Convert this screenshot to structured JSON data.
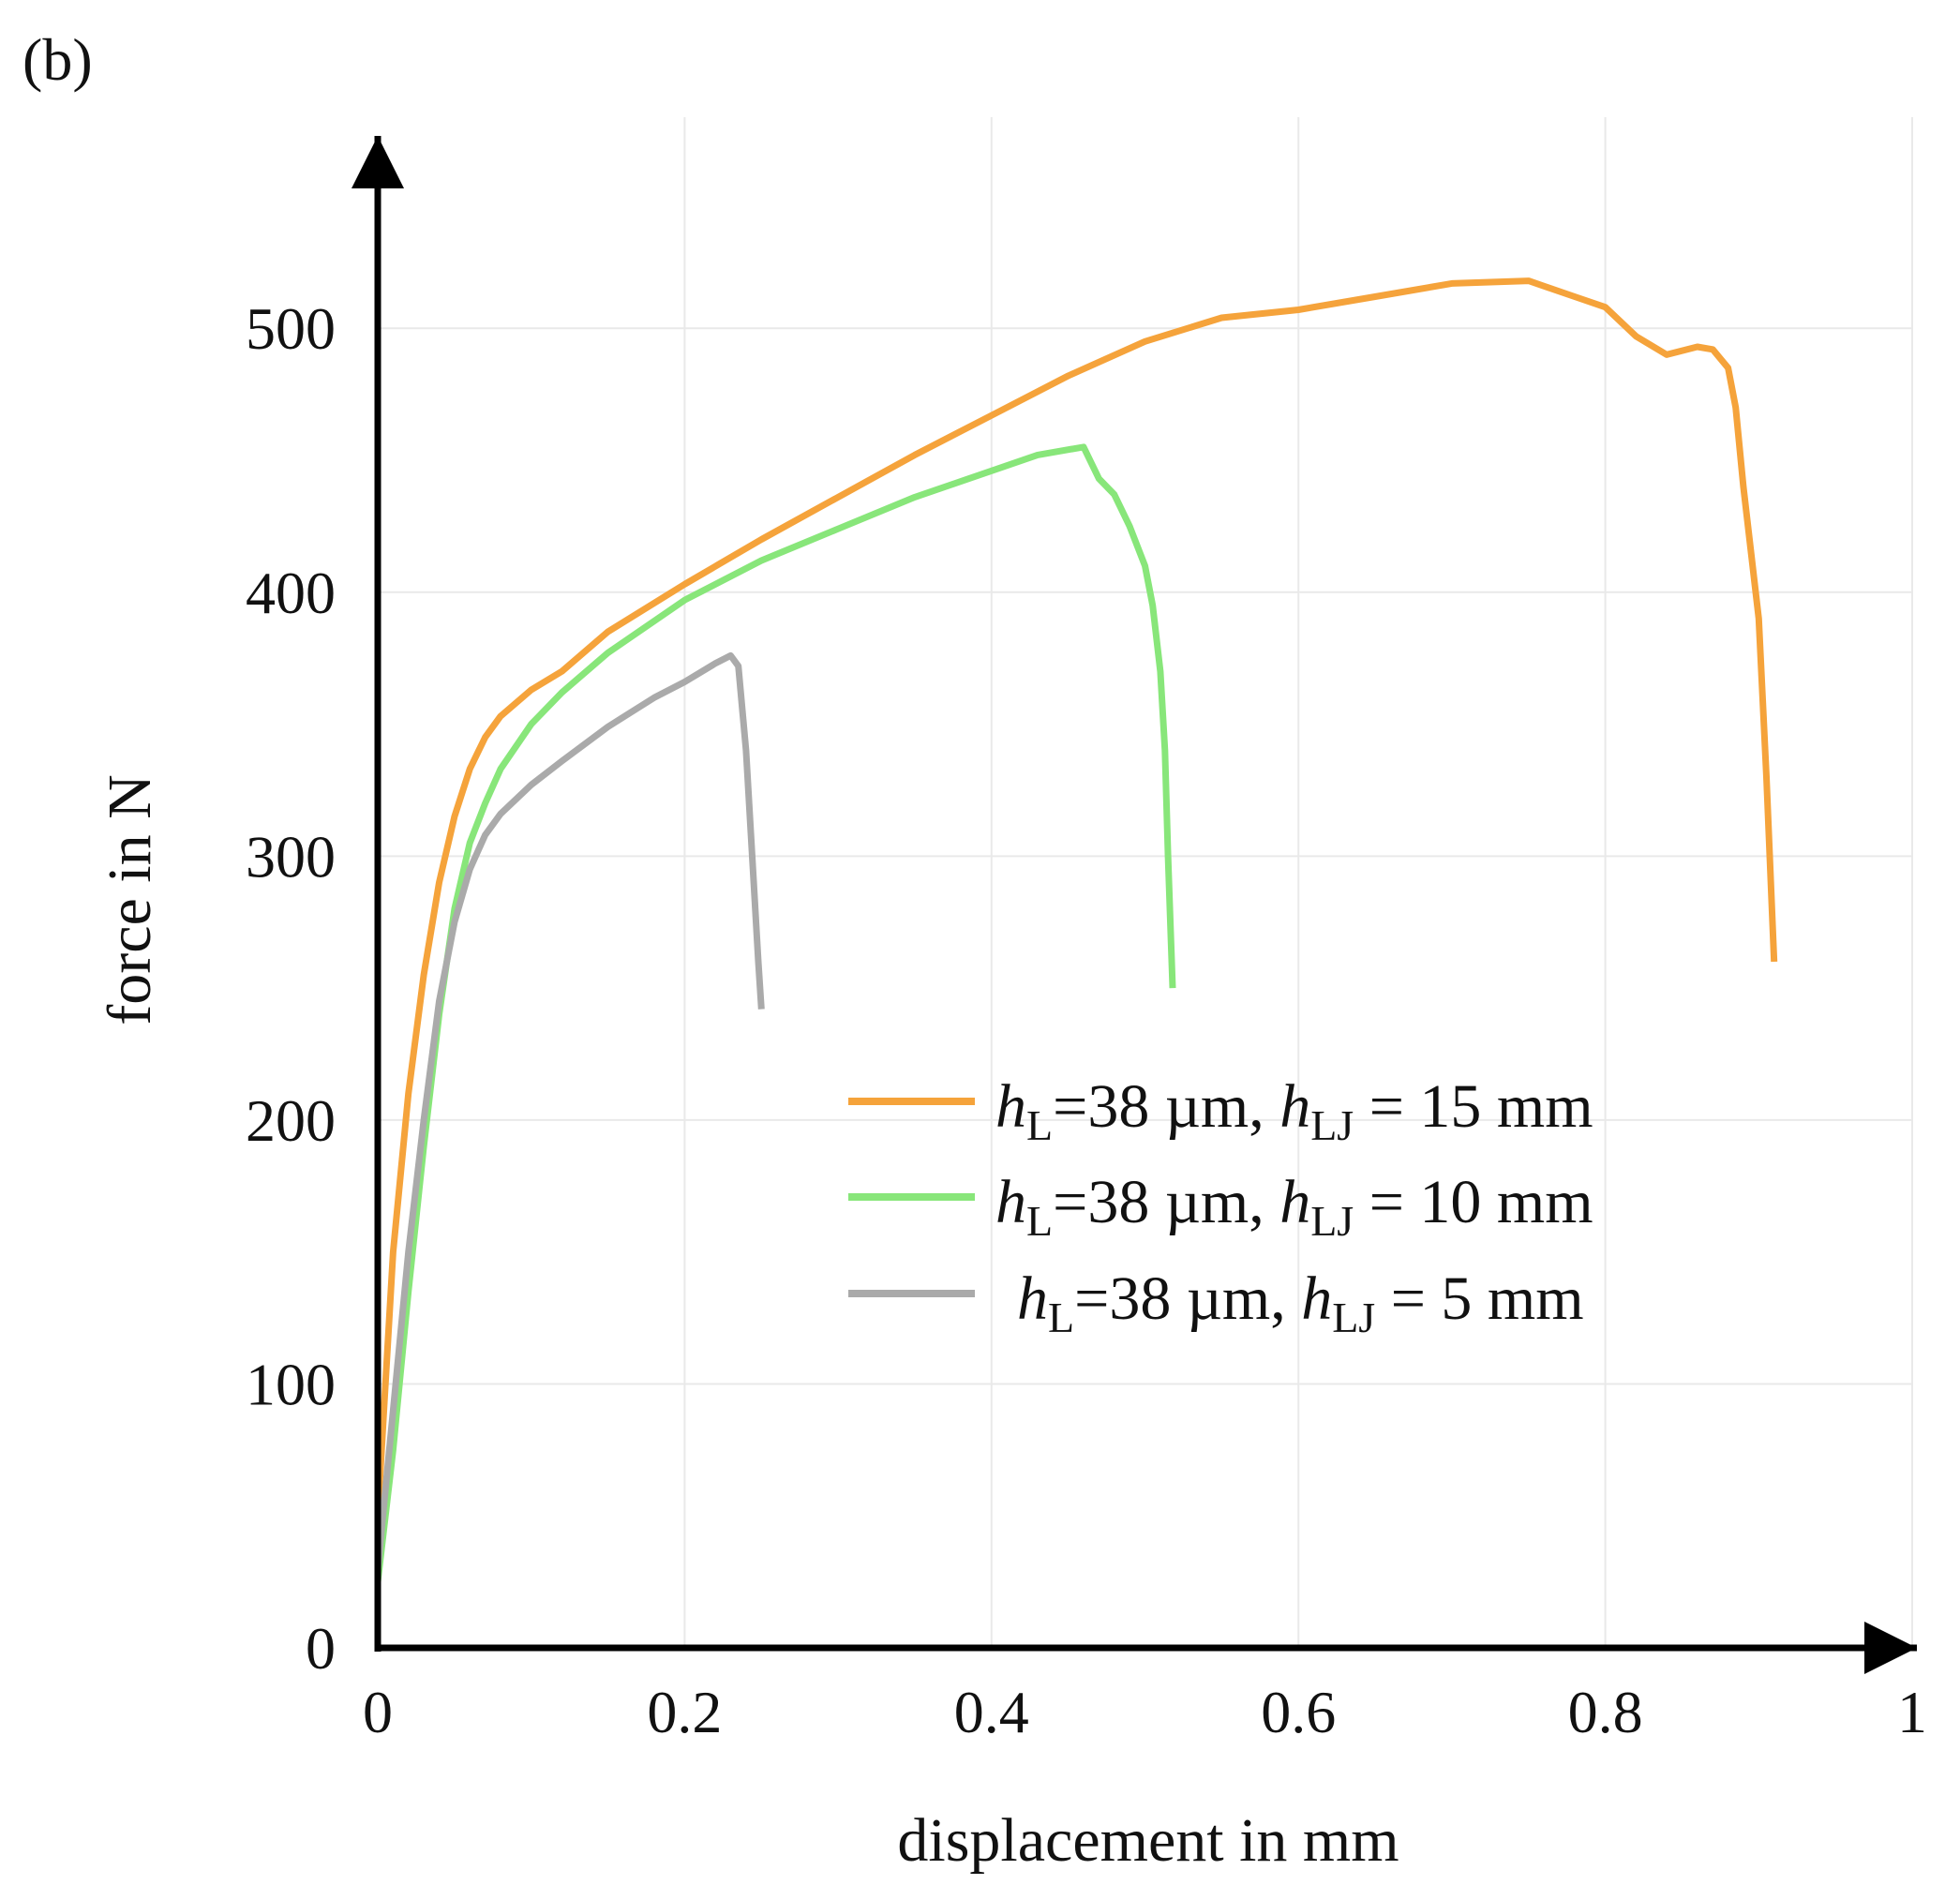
{
  "panel_label": "(b)",
  "chart_data": {
    "type": "line",
    "title": "",
    "xlabel": "displacement in mm",
    "ylabel": "force in N",
    "xlim": [
      0,
      1
    ],
    "ylim": [
      0,
      580
    ],
    "xticks": [
      0,
      0.2,
      0.4,
      0.6,
      0.8,
      1
    ],
    "xtick_labels": [
      "0",
      "0.2",
      "0.4",
      "0.6",
      "0.8",
      "1"
    ],
    "yticks": [
      0,
      100,
      200,
      300,
      400,
      500
    ],
    "ytick_labels": [
      "0",
      "100",
      "200",
      "300",
      "400",
      "500"
    ],
    "grid": true,
    "legend_position": "center-right",
    "series": [
      {
        "name": "hL=38 µm, hLJ = 15 mm",
        "legend": {
          "var": "h",
          "sub1": "L",
          "mid": "=38 µm, ",
          "var2": "h",
          "sub2": "LJ",
          "tail": " = 15 mm"
        },
        "color": "#f5a33b",
        "x": [
          0,
          0.01,
          0.02,
          0.03,
          0.04,
          0.05,
          0.06,
          0.07,
          0.08,
          0.1,
          0.12,
          0.15,
          0.2,
          0.25,
          0.3,
          0.35,
          0.4,
          0.45,
          0.5,
          0.55,
          0.6,
          0.65,
          0.7,
          0.75,
          0.78,
          0.8,
          0.82,
          0.84,
          0.86,
          0.87,
          0.88,
          0.885,
          0.89,
          0.9,
          0.905,
          0.91
        ],
        "y": [
          50,
          150,
          210,
          255,
          290,
          315,
          333,
          345,
          353,
          363,
          370,
          385,
          403,
          420,
          436,
          452,
          467,
          482,
          495,
          504,
          507,
          512,
          517,
          518,
          512,
          508,
          497,
          490,
          493,
          492,
          485,
          470,
          440,
          390,
          330,
          260
        ]
      },
      {
        "name": "hL=38 µm, hLJ = 10 mm",
        "legend": {
          "var": "h",
          "sub1": "L",
          "mid": "=38 µm, ",
          "var2": "h",
          "sub2": "LJ",
          "tail": " = 10 mm"
        },
        "color": "#88e67a",
        "x": [
          0,
          0.01,
          0.02,
          0.03,
          0.04,
          0.05,
          0.06,
          0.07,
          0.08,
          0.1,
          0.12,
          0.15,
          0.2,
          0.25,
          0.3,
          0.35,
          0.4,
          0.43,
          0.46,
          0.47,
          0.48,
          0.49,
          0.5,
          0.505,
          0.51,
          0.513,
          0.515,
          0.518
        ],
        "y": [
          25,
          75,
          135,
          190,
          240,
          280,
          305,
          320,
          333,
          350,
          362,
          377,
          397,
          412,
          424,
          436,
          446,
          452,
          455,
          443,
          437,
          425,
          410,
          395,
          370,
          340,
          300,
          250
        ]
      },
      {
        "name": "hL=38 µm, hLJ = 5 mm",
        "legend": {
          "var": "h",
          "sub1": "L",
          "mid": "=38 µm, ",
          "var2": "h",
          "sub2": "LJ",
          "tail": " = 5 mm"
        },
        "color": "#aaaaaa",
        "x": [
          0,
          0.01,
          0.02,
          0.03,
          0.04,
          0.05,
          0.06,
          0.07,
          0.08,
          0.1,
          0.12,
          0.15,
          0.18,
          0.2,
          0.22,
          0.23,
          0.235,
          0.24,
          0.245,
          0.248,
          0.25
        ],
        "y": [
          30,
          90,
          150,
          200,
          245,
          275,
          295,
          308,
          316,
          327,
          336,
          349,
          360,
          366,
          373,
          376,
          372,
          340,
          290,
          260,
          242
        ]
      }
    ]
  }
}
